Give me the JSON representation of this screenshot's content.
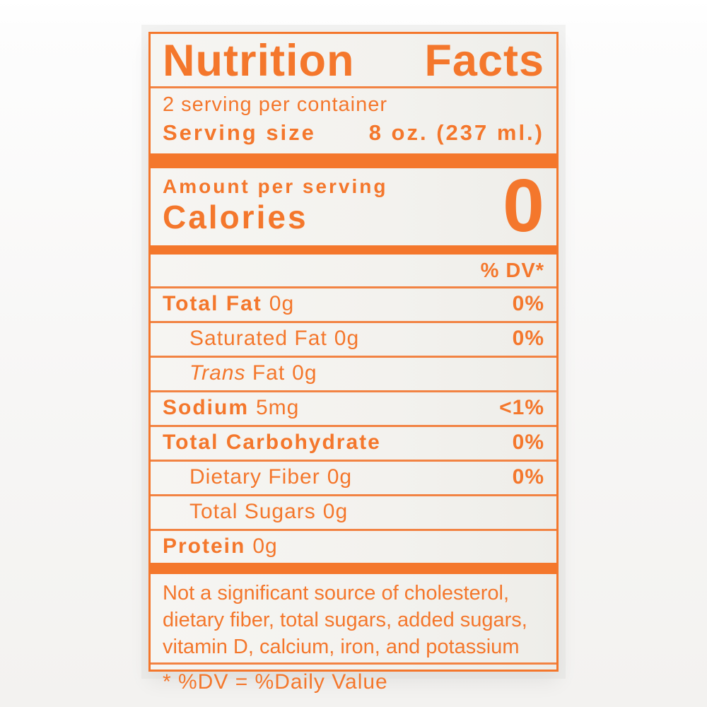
{
  "colors": {
    "accent": "#f4772c",
    "label_background": "#f3f2ee",
    "page_background": "#f8f7f6"
  },
  "label": {
    "title": "Nutrition Facts",
    "servings_per_container": "2 serving per container",
    "serving_size": {
      "label": "Serving size",
      "value": "8 oz. (237 ml.)"
    },
    "amount_per_serving": "Amount per serving",
    "calories": {
      "label": "Calories",
      "value": "0"
    },
    "dv_header": "% DV*",
    "rows": [
      {
        "name": "Total Fat",
        "amount": "0g",
        "dv": "0%"
      },
      {
        "name": "Saturated Fat",
        "amount": "0g",
        "dv": "0%"
      },
      {
        "name_italic": "Trans",
        "name_rest": "Fat",
        "amount": "0g",
        "dv": ""
      },
      {
        "name": "Sodium",
        "amount": "5mg",
        "dv": "<1%"
      },
      {
        "name": "Total Carbohydrate",
        "amount": "",
        "dv": "0%"
      },
      {
        "name": "Dietary Fiber",
        "amount": "0g",
        "dv": "0%"
      },
      {
        "name": "Total Sugars",
        "amount": "0g",
        "dv": ""
      },
      {
        "name": "Protein",
        "amount": "0g",
        "dv": ""
      }
    ],
    "footnote_lines": [
      "Not a significant source of cholesterol,",
      "dietary fiber, total sugars, added sugars,",
      "vitamin D, calcium, iron, and potassium"
    ],
    "dv_note": "* %DV = %Daily Value"
  }
}
